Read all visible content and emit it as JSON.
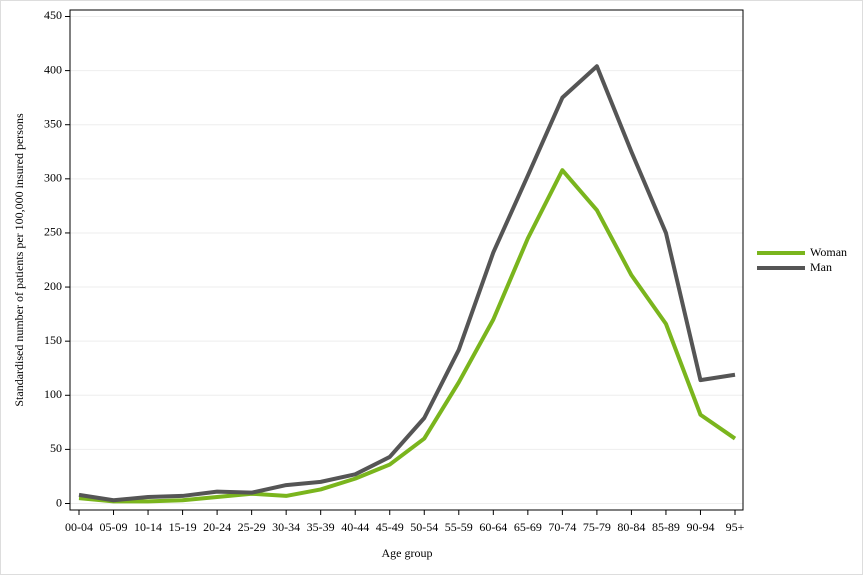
{
  "chart_data": {
    "type": "line",
    "x_label": "Age group",
    "y_label": "Standardised number of patients per 100,000 insured persons",
    "categories": [
      "00-04",
      "05-09",
      "10-14",
      "15-19",
      "20-24",
      "25-29",
      "30-34",
      "35-39",
      "40-44",
      "45-49",
      "50-54",
      "55-59",
      "60-64",
      "65-69",
      "70-74",
      "75-79",
      "80-84",
      "85-89",
      "90-94",
      "95+"
    ],
    "series": [
      {
        "name": "Woman",
        "color": "#7ab51d",
        "values": [
          5,
          2,
          2,
          3,
          6,
          9,
          7,
          13,
          23,
          36,
          60,
          112,
          170,
          245,
          308,
          271,
          211,
          166,
          82,
          60
        ]
      },
      {
        "name": "Man",
        "color": "#555555",
        "values": [
          8,
          3,
          6,
          7,
          11,
          10,
          17,
          20,
          27,
          43,
          79,
          142,
          232,
          303,
          375,
          404,
          325,
          250,
          114,
          119
        ]
      }
    ],
    "ylim": [
      -6,
      456
    ],
    "yticks": [
      0,
      50,
      100,
      150,
      200,
      250,
      300,
      350,
      400,
      450
    ],
    "grid": true,
    "legend": "right"
  }
}
